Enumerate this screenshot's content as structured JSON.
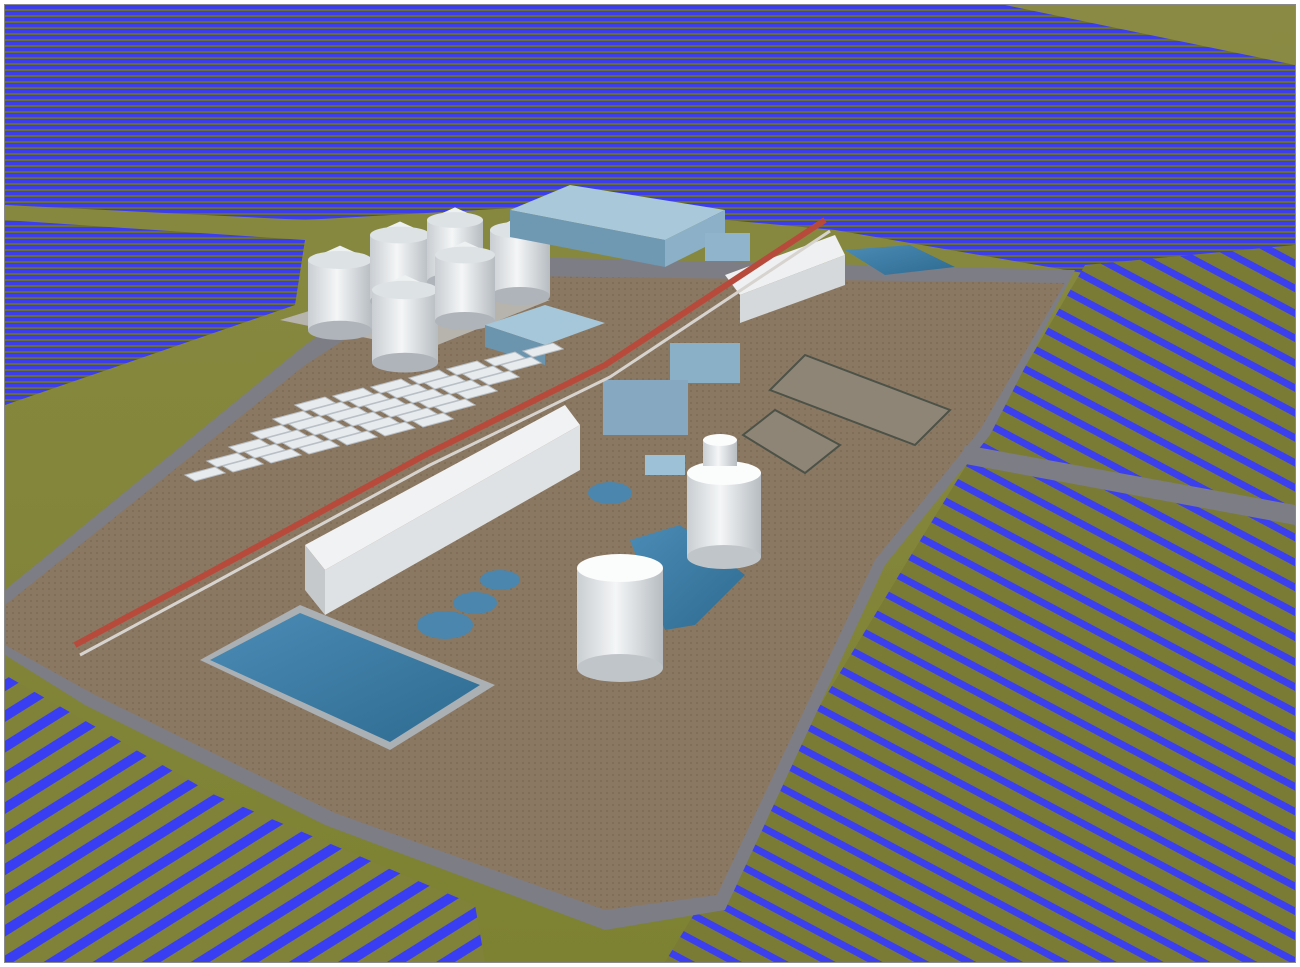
{
  "scene": {
    "subject": "",
    "palette": {
      "field_grass": "#8f8f3c",
      "field_grass_dark": "#6f7330",
      "solar_panel": "#3c3ff0",
      "solar_panel_dark": "#2526b8",
      "site_ground": "#8a7660",
      "road": "#7d7d85",
      "water": "#3f7fa8",
      "tank_white": "#e9ecee",
      "pipe_red": "#b84a3c",
      "building_blue": "#8fb4cc"
    }
  }
}
